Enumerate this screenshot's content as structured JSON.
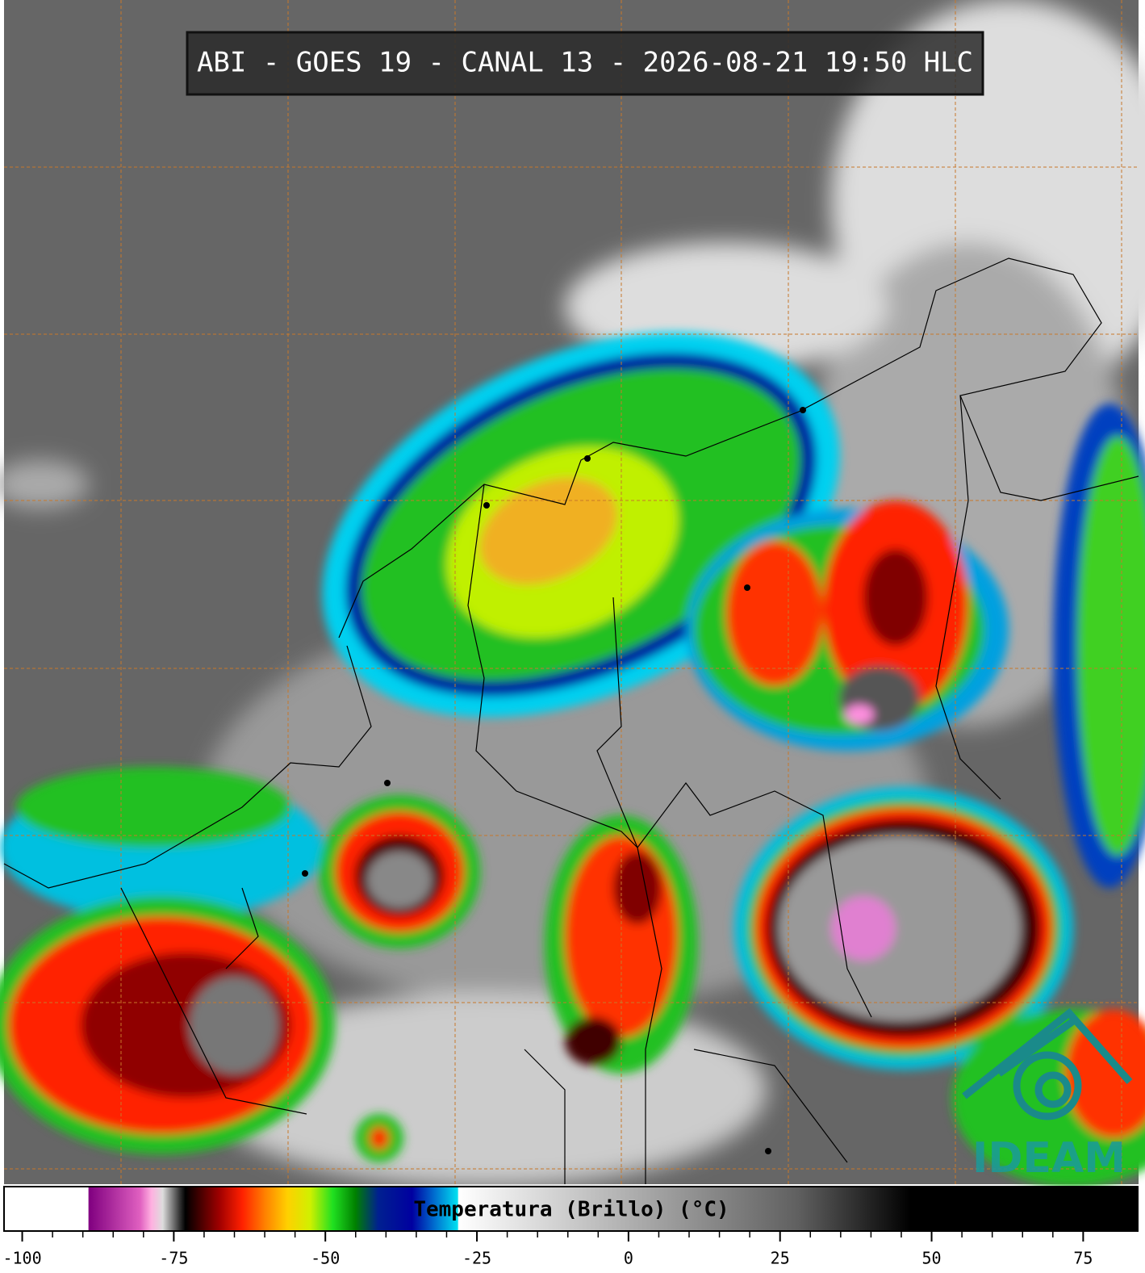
{
  "header": {
    "title": "ABI - GOES 19 - CANAL 13 - 2026-08-21 19:50 HLC"
  },
  "colorbar": {
    "label": "Temperatura (Brillo) (°C)",
    "range": [
      -103,
      84
    ],
    "ticks": [
      -100,
      -75,
      -50,
      -25,
      0,
      25,
      50,
      75
    ]
  },
  "logo": {
    "text": "IDEAM"
  }
}
